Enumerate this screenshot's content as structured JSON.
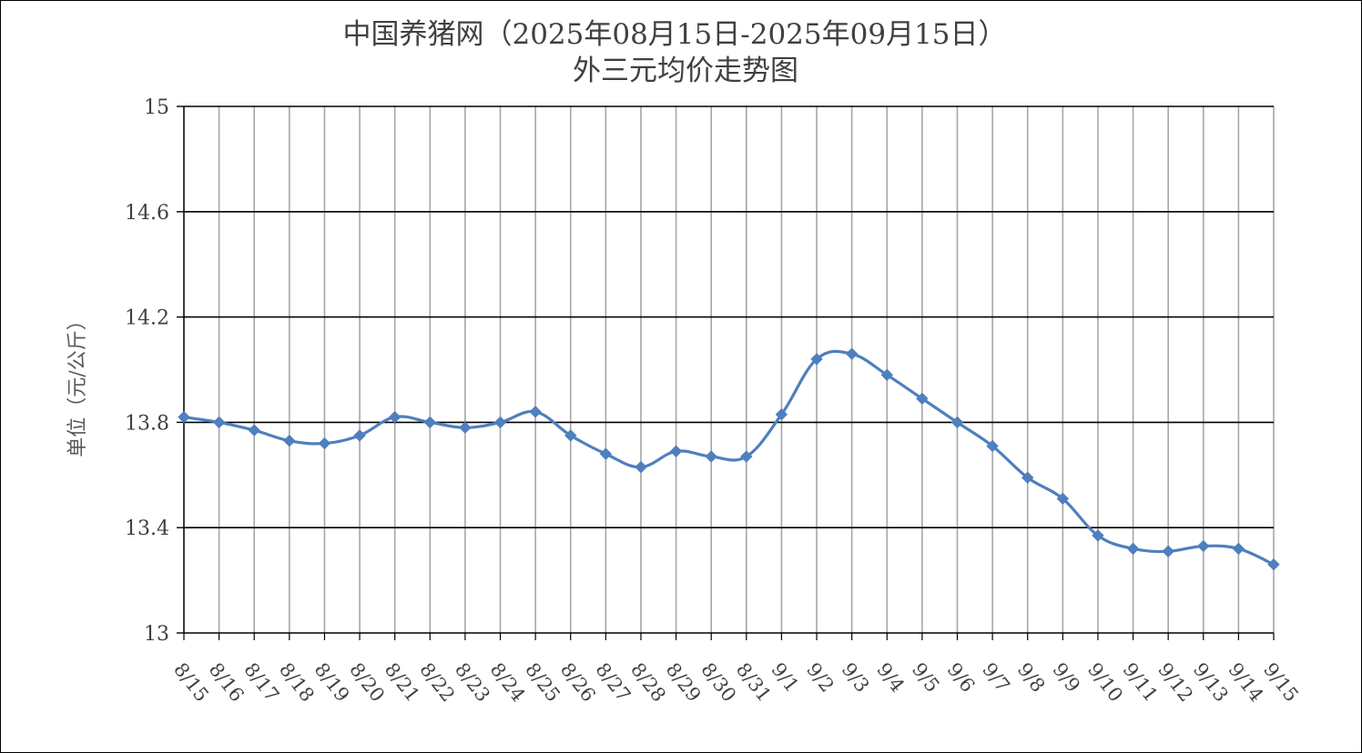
{
  "chart_data": {
    "type": "line",
    "title_line1": "中国养猪网（2025年08月15日-2025年09月15日）",
    "title_line2": "外三元均价走势图",
    "xlabel": "",
    "ylabel": "单位（元/公斤）",
    "ylim": [
      13,
      15
    ],
    "yticks": [
      "15",
      "14.6",
      "14.2",
      "13.8",
      "13.4",
      "13"
    ],
    "ytick_values": [
      15,
      14.6,
      14.2,
      13.8,
      13.4,
      13
    ],
    "grid": "horizontal and vertical",
    "categories": [
      "8/15",
      "8/16",
      "8/17",
      "8/18",
      "8/19",
      "8/20",
      "8/21",
      "8/22",
      "8/23",
      "8/24",
      "8/25",
      "8/26",
      "8/27",
      "8/28",
      "8/29",
      "8/30",
      "8/31",
      "9/1",
      "9/2",
      "9/3",
      "9/4",
      "9/5",
      "9/6",
      "9/7",
      "9/8",
      "9/9",
      "9/10",
      "9/11",
      "9/12",
      "9/13",
      "9/14",
      "9/15"
    ],
    "series": [
      {
        "values": [
          13.82,
          13.8,
          13.77,
          13.73,
          13.72,
          13.75,
          13.82,
          13.8,
          13.78,
          13.8,
          13.84,
          13.75,
          13.68,
          13.63,
          13.69,
          13.67,
          13.67,
          13.83,
          14.04,
          14.06,
          13.98,
          13.89,
          13.8,
          13.71,
          13.59,
          13.51,
          13.37,
          13.32,
          13.31,
          13.33,
          13.32,
          13.26
        ],
        "color": "#4F7FBE",
        "marker": "diamond"
      }
    ]
  }
}
